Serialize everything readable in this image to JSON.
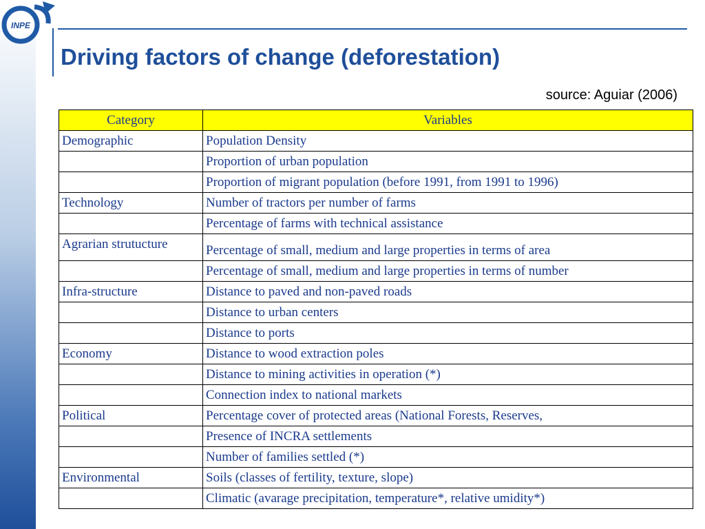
{
  "slide": {
    "logo_text": "INPE",
    "title": "Driving factors of change (deforestation)",
    "source": "source: Aguiar (2006)"
  },
  "table": {
    "headers": [
      "Category",
      "Variables"
    ],
    "rows": [
      {
        "category": "Demographic",
        "variable": "Population Density"
      },
      {
        "category": "",
        "variable": "Proportion of urban population"
      },
      {
        "category": "",
        "variable": "Proportion of migrant population (before 1991, from 1991 to 1996)"
      },
      {
        "category": "Technology",
        "variable": "Number of tractors per number of farms"
      },
      {
        "category": "",
        "variable": "Percentage of farms with technical assistance"
      },
      {
        "category": "Agrarian strutucture",
        "variable": "Percentage of small, medium and large properties in terms of area"
      },
      {
        "category": "",
        "variable": "Percentage of small, medium and large properties in terms of number"
      },
      {
        "category": "Infra-structure",
        "variable": "Distance to paved and non-paved roads"
      },
      {
        "category": "",
        "variable": "Distance to urban centers"
      },
      {
        "category": "",
        "variable": "Distance to ports"
      },
      {
        "category": "Economy",
        "variable": "Distance to wood extraction poles"
      },
      {
        "category": "",
        "variable": "Distance to mining activities in operation (*)"
      },
      {
        "category": "",
        "variable": "Connection index to national markets"
      },
      {
        "category": "Political",
        "variable": "Percentage cover of protected areas (National Forests, Reserves,"
      },
      {
        "category": "",
        "variable": "Presence of INCRA settlements"
      },
      {
        "category": "",
        "variable": "Number of families settled (*)"
      },
      {
        "category": "Environmental",
        "variable": "Soils (classes of fertility, texture, slope)"
      },
      {
        "category": "",
        "variable": "Climatic (avarage precipitation,  temperature*, relative umidity*)"
      }
    ]
  },
  "colors": {
    "title": "#1f4f9a",
    "table_text": "#1a3a8c",
    "header_fill": "#ffff00",
    "rule": "#1f5aa6"
  }
}
